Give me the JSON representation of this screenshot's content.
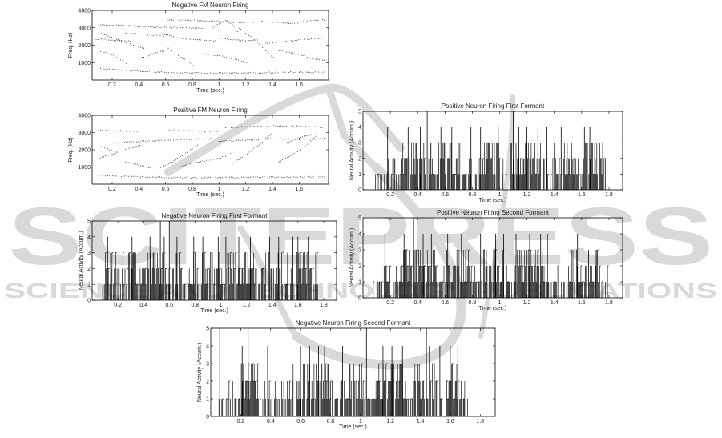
{
  "watermark": {
    "big_text": "SCITEPRESS",
    "small_text": "SCIENCE AND TECHNOLOGY PUBLICATIONS",
    "color": "#d9d9d9"
  },
  "chart_data": [
    {
      "id": "neg-fm",
      "type": "scatter",
      "title": "Negative FM Neuron Firing",
      "xlabel": "Time (sec.)",
      "ylabel": "Freq. (Hz)",
      "xlim": [
        0.05,
        1.82
      ],
      "ylim": [
        0,
        4000
      ],
      "xticks": [
        0.2,
        0.4,
        0.6,
        0.8,
        1,
        1.2,
        1.4,
        1.6
      ],
      "yticks": [
        1000,
        2000,
        3000,
        4000
      ],
      "xtick_labels": [
        "0.2",
        "0.4",
        "0.6",
        "0.8",
        "1",
        "1.2",
        "1.4",
        "1.6"
      ],
      "ytick_labels": [
        "1000",
        "2000",
        "3000",
        "4000"
      ],
      "tracks": [
        {
          "x": [
            0.1,
            0.3,
            0.5,
            0.7,
            0.9
          ],
          "y": [
            3180,
            3120,
            3050,
            3000,
            2980
          ]
        },
        {
          "x": [
            0.3,
            0.48,
            0.6
          ],
          "y": [
            2700,
            2600,
            2500
          ]
        },
        {
          "x": [
            0.62,
            0.8,
            0.98,
            1.12
          ],
          "y": [
            3450,
            3420,
            3380,
            3300
          ]
        },
        {
          "x": [
            1.15,
            1.35,
            1.55,
            1.7,
            1.8
          ],
          "y": [
            3300,
            3350,
            3250,
            3400,
            3450
          ]
        },
        {
          "x": [
            0.12,
            0.22,
            0.32,
            0.45
          ],
          "y": [
            2650,
            2400,
            2100,
            1800
          ]
        },
        {
          "x": [
            0.55,
            0.7,
            0.85,
            1.0
          ],
          "y": [
            2700,
            2400,
            2300,
            2250
          ]
        },
        {
          "x": [
            1.0,
            1.1,
            1.2,
            1.3
          ],
          "y": [
            2400,
            2300,
            2250,
            2300
          ]
        },
        {
          "x": [
            1.35,
            1.5,
            1.65,
            1.8
          ],
          "y": [
            2100,
            2200,
            2350,
            2400
          ]
        },
        {
          "x": [
            0.1,
            0.18,
            0.25,
            0.32
          ],
          "y": [
            1700,
            1500,
            1250,
            900
          ]
        },
        {
          "x": [
            0.4,
            0.5,
            0.6
          ],
          "y": [
            1200,
            1500,
            1700
          ]
        },
        {
          "x": [
            0.62,
            0.72,
            0.82
          ],
          "y": [
            1800,
            1300,
            800
          ]
        },
        {
          "x": [
            0.9,
            1.0,
            1.12,
            1.22
          ],
          "y": [
            1500,
            1400,
            1200,
            1000
          ]
        },
        {
          "x": [
            1.15,
            1.25,
            1.35,
            1.42
          ],
          "y": [
            3000,
            2400,
            1700,
            1200
          ]
        },
        {
          "x": [
            1.45,
            1.58,
            1.7,
            1.8
          ],
          "y": [
            1700,
            1500,
            1250,
            1100
          ]
        },
        {
          "x": [
            0.1,
            0.4,
            0.7,
            1.0,
            1.3,
            1.6,
            1.8
          ],
          "y": [
            650,
            500,
            420,
            400,
            420,
            450,
            430
          ]
        },
        {
          "x": [
            0.08,
            0.2,
            0.35
          ],
          "y": [
            2350,
            2300,
            2200
          ]
        },
        {
          "x": [
            0.95,
            1.05,
            1.1,
            1.15
          ],
          "y": [
            3000,
            3450,
            3200,
            2600
          ]
        }
      ]
    },
    {
      "id": "pos-fm",
      "type": "scatter",
      "title": "Positive FM Neuron Firing",
      "xlabel": "Time (sec.)",
      "ylabel": "Freq. (Hz)",
      "xlim": [
        0.05,
        1.82
      ],
      "ylim": [
        0,
        4000
      ],
      "xticks": [
        0.2,
        0.4,
        0.6,
        0.8,
        1,
        1.2,
        1.4,
        1.6
      ],
      "yticks": [
        1000,
        2000,
        3000,
        4000
      ],
      "xtick_labels": [
        "0.2",
        "0.4",
        "0.6",
        "0.8",
        "1",
        "1.2",
        "1.4",
        "1.6"
      ],
      "ytick_labels": [
        "1000",
        "2000",
        "3000",
        "4000"
      ],
      "tracks": [
        {
          "x": [
            0.1,
            0.25,
            0.4
          ],
          "y": [
            3150,
            3100,
            3050
          ]
        },
        {
          "x": [
            0.6,
            0.8,
            1.0
          ],
          "y": [
            3150,
            3100,
            3050
          ]
        },
        {
          "x": [
            1.05,
            1.25,
            1.45,
            1.65,
            1.8
          ],
          "y": [
            3300,
            3350,
            3400,
            3350,
            3300
          ]
        },
        {
          "x": [
            0.2,
            0.45,
            0.7,
            0.95
          ],
          "y": [
            2400,
            2500,
            2600,
            2650
          ]
        },
        {
          "x": [
            1.0,
            1.2,
            1.4,
            1.6,
            1.8
          ],
          "y": [
            2500,
            2550,
            2650,
            2600,
            2650
          ]
        },
        {
          "x": [
            0.1,
            0.2,
            0.3,
            0.42
          ],
          "y": [
            1500,
            1750,
            2000,
            2300
          ]
        },
        {
          "x": [
            0.55,
            0.65,
            0.75,
            0.85
          ],
          "y": [
            900,
            1300,
            1800,
            2300
          ]
        },
        {
          "x": [
            0.7,
            0.85,
            1.0,
            1.1
          ],
          "y": [
            1000,
            1300,
            1500,
            1800
          ]
        },
        {
          "x": [
            1.1,
            1.2,
            1.3,
            1.4
          ],
          "y": [
            1200,
            1700,
            2300,
            3000
          ]
        },
        {
          "x": [
            1.45,
            1.55,
            1.65,
            1.75
          ],
          "y": [
            1300,
            1700,
            2200,
            3000
          ]
        },
        {
          "x": [
            0.3,
            0.4,
            0.5
          ],
          "y": [
            1300,
            1100,
            900
          ]
        },
        {
          "x": [
            0.1,
            0.4,
            0.7,
            1.0,
            1.3,
            1.6,
            1.8
          ],
          "y": [
            500,
            420,
            380,
            380,
            400,
            420,
            430
          ]
        },
        {
          "x": [
            0.12,
            0.18,
            0.25
          ],
          "y": [
            2200,
            2000,
            1800
          ]
        },
        {
          "x": [
            1.5,
            1.6,
            1.7
          ],
          "y": [
            2400,
            2700,
            2900
          ]
        }
      ]
    },
    {
      "id": "pos-f1",
      "type": "bar",
      "title": "Positive Neuron Firing First Formant",
      "xlabel": "Time (sec.)",
      "ylabel": "Neural Activity (Accum.)",
      "xlim": [
        0,
        1.9
      ],
      "ylim": [
        0,
        5
      ],
      "xticks": [
        0.2,
        0.4,
        0.6,
        0.8,
        1,
        1.2,
        1.4,
        1.6,
        1.8
      ],
      "yticks": [
        0,
        1,
        2,
        3,
        4,
        5
      ],
      "xtick_labels": [
        "0.2",
        "0.4",
        "0.6",
        "0.8",
        "1",
        "1.2",
        "1.4",
        "1.6",
        "1.8"
      ],
      "ytick_labels": [
        "0",
        "1",
        "2",
        "3",
        "4",
        "5"
      ],
      "active_range": [
        0.07,
        1.78
      ],
      "dense_segments": [
        [
          0.28,
          0.52
        ],
        [
          0.55,
          0.72
        ],
        [
          0.88,
          1.0
        ],
        [
          1.08,
          1.3
        ],
        [
          1.4,
          1.55
        ],
        [
          1.6,
          1.76
        ]
      ],
      "typical_levels": [
        1,
        2,
        3
      ],
      "peak_events": {
        "x": [
          0.18,
          0.33,
          0.42,
          0.47,
          0.57,
          0.65,
          0.79,
          0.86,
          0.99,
          1.1,
          1.14,
          1.2,
          1.28,
          1.34,
          1.45,
          1.62,
          1.66
        ],
        "y": [
          4,
          4,
          4,
          5,
          4,
          4,
          4,
          4,
          4,
          5,
          4,
          4,
          4,
          4,
          4,
          4,
          4
        ]
      },
      "seed": 11
    },
    {
      "id": "neg-f1",
      "type": "bar",
      "title": "Negative Neuron Firing First Formant",
      "xlabel": "Time (sec.)",
      "ylabel": "Neural Activity (Accum.)",
      "xlim": [
        0,
        1.9
      ],
      "ylim": [
        0,
        5
      ],
      "xticks": [
        0.2,
        0.4,
        0.6,
        0.8,
        1,
        1.2,
        1.4,
        1.6,
        1.8
      ],
      "yticks": [
        0,
        1,
        2,
        3,
        4,
        5
      ],
      "xtick_labels": [
        "0.2",
        "0.4",
        "0.6",
        "0.8",
        "1",
        "1.2",
        "1.4",
        "1.6",
        "1.8"
      ],
      "ytick_labels": [
        "0",
        "1",
        "2",
        "3",
        "4",
        "5"
      ],
      "active_range": [
        0.07,
        1.76
      ],
      "dense_segments": [
        [
          0.1,
          0.35
        ],
        [
          0.4,
          0.6
        ],
        [
          0.62,
          0.8
        ],
        [
          0.85,
          1.0
        ],
        [
          1.05,
          1.28
        ],
        [
          1.32,
          1.52
        ],
        [
          1.58,
          1.76
        ]
      ],
      "typical_levels": [
        1,
        2,
        3
      ],
      "peak_events": {
        "x": [
          0.12,
          0.24,
          0.31,
          0.45,
          0.53,
          0.56,
          0.6,
          0.66,
          0.79,
          0.86,
          0.98,
          1.04,
          1.14,
          1.23,
          1.38,
          1.45,
          1.56,
          1.6,
          1.68
        ],
        "y": [
          4,
          4,
          4,
          4,
          5,
          4,
          5,
          4,
          4,
          4,
          4,
          4,
          4,
          4,
          4,
          4,
          4,
          4,
          4
        ]
      },
      "seed": 23
    },
    {
      "id": "pos-f2",
      "type": "bar",
      "title": "Positive Neuron Firing Second Formant",
      "xlabel": "Time (sec.)",
      "ylabel": "Neural Activity (Accum.)",
      "xlim": [
        0,
        1.9
      ],
      "ylim": [
        0,
        5
      ],
      "xticks": [
        0.2,
        0.4,
        0.6,
        0.8,
        1,
        1.2,
        1.4,
        1.6,
        1.8
      ],
      "yticks": [
        0,
        1,
        2,
        3,
        4,
        5
      ],
      "xtick_labels": [
        "0.2",
        "0.4",
        "0.6",
        "0.8",
        "1",
        "1.2",
        "1.4",
        "1.6",
        "1.8"
      ],
      "ytick_labels": [
        "0",
        "1",
        "2",
        "3",
        "4",
        "5"
      ],
      "active_range": [
        0.07,
        1.8
      ],
      "dense_segments": [
        [
          0.25,
          0.55
        ],
        [
          0.6,
          0.78
        ],
        [
          0.88,
          1.05
        ],
        [
          1.12,
          1.32
        ],
        [
          1.5,
          1.72
        ]
      ],
      "typical_levels": [
        1,
        2,
        3
      ],
      "peak_events": {
        "x": [
          0.16,
          0.3,
          0.37,
          0.44,
          0.5,
          0.62,
          0.72,
          0.86,
          0.97,
          1.03,
          1.12,
          1.22,
          1.3,
          1.35,
          1.57,
          1.65,
          1.7
        ],
        "y": [
          4,
          4,
          5,
          4,
          4,
          4,
          4,
          4,
          4,
          4,
          4,
          4,
          4,
          4,
          4,
          3,
          3
        ]
      },
      "seed": 37
    },
    {
      "id": "neg-f2",
      "type": "bar",
      "title": "Negative Neuron Firing Second Formant",
      "xlabel": "Time (sec.)",
      "ylabel": "Neural Activity (Accum.)",
      "xlim": [
        0,
        1.9
      ],
      "ylim": [
        0,
        5
      ],
      "xticks": [
        0.2,
        0.4,
        0.6,
        0.8,
        1,
        1.2,
        1.4,
        1.6,
        1.8
      ],
      "yticks": [
        0,
        1,
        2,
        3,
        4,
        5
      ],
      "xtick_labels": [
        "0.2",
        "0.4",
        "0.6",
        "0.8",
        "1",
        "1.2",
        "1.4",
        "1.6",
        "1.8"
      ],
      "ytick_labels": [
        "0",
        "1",
        "2",
        "3",
        "4",
        "5"
      ],
      "active_range": [
        0.04,
        1.72
      ],
      "dense_segments": [
        [
          0.18,
          0.32
        ],
        [
          0.55,
          0.8
        ],
        [
          0.92,
          1.02
        ],
        [
          1.1,
          1.3
        ],
        [
          1.35,
          1.52
        ],
        [
          1.57,
          1.7
        ]
      ],
      "typical_levels": [
        1,
        2,
        3
      ],
      "peak_events": {
        "x": [
          0.06,
          0.21,
          0.25,
          0.38,
          0.6,
          0.66,
          0.72,
          0.76,
          0.88,
          1.04,
          1.15,
          1.21,
          1.28,
          1.44,
          1.46,
          1.53,
          1.6,
          1.65
        ],
        "y": [
          5,
          4,
          5,
          4,
          4,
          4,
          4,
          4,
          4,
          5,
          4,
          4,
          4,
          5,
          4,
          4,
          4,
          4
        ]
      },
      "seed": 53
    }
  ]
}
